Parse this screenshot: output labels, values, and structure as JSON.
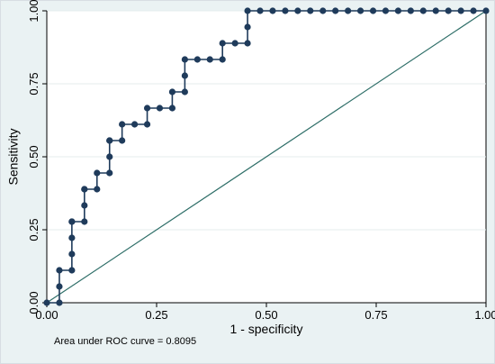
{
  "chart_data": {
    "type": "line",
    "xlabel": "1 - specificity",
    "ylabel": "Sensitivity",
    "xlim": [
      0,
      1
    ],
    "ylim": [
      0,
      1
    ],
    "x_ticks": [
      "0.00",
      "0.25",
      "0.50",
      "0.75",
      "1.00"
    ],
    "y_ticks": [
      "0.00",
      "0.25",
      "0.50",
      "0.75",
      "1.00"
    ],
    "grid": true,
    "annotation": "Area under ROC curve = 0.8095",
    "colors": {
      "curve": "#1f3b5b",
      "reference": "#2e6e68",
      "plot_bg": "#ffffff",
      "outer_bg": "#eaf2f3",
      "grid": "#e4ecee"
    },
    "series": [
      {
        "x": [
          0,
          0.0286,
          0.0286,
          0.0286,
          0.0571,
          0.0571,
          0.0571,
          0.0571,
          0.0571,
          0.0857,
          0.0857,
          0.0857,
          0.0857,
          0.1143,
          0.1143,
          0.1429,
          0.1429,
          0.1429,
          0.1429,
          0.1714,
          0.1714,
          0.2,
          0.2286,
          0.2286,
          0.2571,
          0.2857,
          0.2857,
          0.3143,
          0.3143,
          0.3143,
          0.3429,
          0.3714,
          0.4,
          0.4,
          0.4286,
          0.4571,
          0.4571,
          0.4571,
          0.4857,
          0.5143,
          0.5429,
          0.5714,
          0.6,
          0.6286,
          0.6571,
          0.6857,
          0.7143,
          0.7429,
          0.7714,
          0.8,
          0.8286,
          0.8571,
          0.8857,
          0.9143,
          0.9429,
          0.9714,
          1.0
        ],
        "y": [
          0,
          0,
          0.0556,
          0.1111,
          0.1111,
          0.1667,
          0.2222,
          0.2778,
          0.2778,
          0.2778,
          0.3333,
          0.3889,
          0.3889,
          0.3889,
          0.4444,
          0.4444,
          0.5,
          0.5556,
          0.5556,
          0.5556,
          0.6111,
          0.6111,
          0.6111,
          0.6667,
          0.6667,
          0.6667,
          0.7222,
          0.7222,
          0.7778,
          0.8333,
          0.8333,
          0.8333,
          0.8333,
          0.8889,
          0.8889,
          0.8889,
          0.9444,
          1.0,
          1.0,
          1.0,
          1.0,
          1.0,
          1.0,
          1.0,
          1.0,
          1.0,
          1.0,
          1.0,
          1.0,
          1.0,
          1.0,
          1.0,
          1.0,
          1.0,
          1.0,
          1.0,
          1.0
        ]
      },
      {
        "x": [
          0,
          1
        ],
        "y": [
          0,
          1
        ]
      }
    ]
  }
}
